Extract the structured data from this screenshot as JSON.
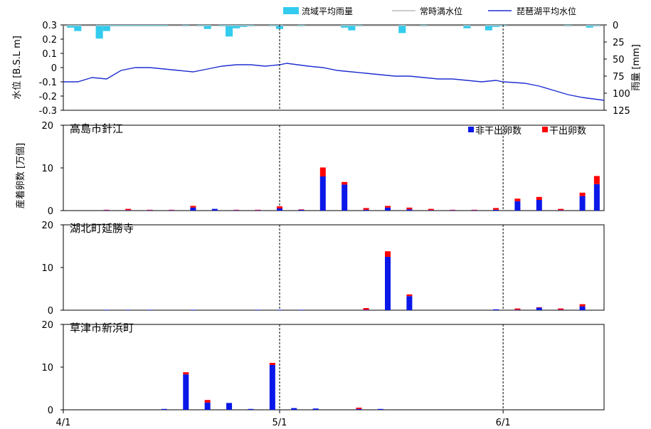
{
  "chart_data": {
    "type": "bar",
    "x_tick_labels": [
      "4/1",
      "5/1",
      "6/1"
    ],
    "x_ticks_day": [
      0,
      30,
      61
    ],
    "x_range_day": [
      0,
      75
    ],
    "legend_top": {
      "rain": "流域平均雨量",
      "normal": "常時満水位",
      "lake": "琵琶湖平均水位"
    },
    "colors": {
      "rain": "#33ccee",
      "normal": "#bbbbbb",
      "lake": "#1f2fd0",
      "not_dried": "#0a18e8",
      "dried": "#ff0000"
    },
    "water": {
      "ylabel": "水位 [B.S.L m]",
      "ylim": [
        -0.3,
        0.3
      ],
      "yticks": [
        "0.3",
        "0.2",
        "0.1",
        "0",
        "-0.1",
        "-0.2",
        "-0.3"
      ],
      "y2label": "雨量 [mm]",
      "y2lim": [
        0,
        125
      ],
      "y2ticks": [
        "0",
        "25",
        "50",
        "75",
        "100",
        "125"
      ],
      "normal_level": 0.3,
      "level_day": [
        0,
        2,
        4,
        6,
        8,
        10,
        12,
        14,
        16,
        18,
        20,
        22,
        24,
        26,
        28,
        30,
        31,
        34,
        36,
        38,
        40,
        42,
        44,
        46,
        48,
        50,
        52,
        54,
        56,
        58,
        60,
        61,
        64,
        66,
        68,
        70,
        72,
        75
      ],
      "level": [
        -0.1,
        -0.1,
        -0.07,
        -0.08,
        -0.02,
        0.0,
        0.0,
        -0.01,
        -0.02,
        -0.03,
        -0.01,
        0.01,
        0.02,
        0.02,
        0.01,
        0.02,
        0.03,
        0.01,
        0.0,
        -0.02,
        -0.03,
        -0.04,
        -0.05,
        -0.06,
        -0.06,
        -0.07,
        -0.08,
        -0.08,
        -0.09,
        -0.1,
        -0.09,
        -0.1,
        -0.11,
        -0.13,
        -0.16,
        -0.19,
        -0.21,
        -0.23
      ],
      "rain_day": [
        1,
        2,
        5,
        6,
        7,
        8,
        9,
        10,
        11,
        12,
        13,
        14,
        17,
        19,
        20,
        22,
        23,
        24,
        25,
        26,
        29,
        30,
        33,
        39,
        40,
        41,
        47,
        50,
        56,
        59,
        60,
        61,
        70,
        73,
        74
      ],
      "rain_mm": [
        4,
        9,
        20,
        9,
        2,
        2,
        2,
        2,
        2,
        2,
        2,
        2,
        2,
        2,
        6,
        2,
        17,
        5,
        3,
        2,
        2,
        6,
        2,
        4,
        8,
        2,
        12,
        2,
        5,
        8,
        3,
        2,
        2,
        4,
        2
      ]
    },
    "legend_eggs": {
      "not_dried": "非干出卵数",
      "dried": "干出卵数"
    },
    "panels_ylabel": "産着卵数 [万個]",
    "panels": [
      {
        "title": "高島市針江",
        "ylim": [
          0,
          20
        ],
        "yticks": [
          "20",
          "10",
          "0"
        ],
        "day": [
          6,
          9,
          12,
          15,
          18,
          21,
          24,
          27,
          30,
          33,
          36,
          39,
          42,
          45,
          48,
          51,
          54,
          57,
          60,
          63,
          66,
          69,
          72,
          74
        ],
        "not_dried": [
          0.1,
          0.1,
          0.1,
          0.1,
          0.7,
          0.4,
          0.1,
          0.1,
          0.5,
          0.2,
          8.0,
          6.1,
          0.2,
          0.7,
          0.3,
          0.1,
          0.1,
          0.1,
          0.2,
          2.2,
          2.5,
          0.1,
          3.4,
          6.2
        ],
        "dried": [
          0.1,
          0.3,
          0.1,
          0.1,
          0.4,
          0.0,
          0.1,
          0.1,
          0.5,
          0.1,
          2.1,
          0.6,
          0.4,
          0.4,
          0.4,
          0.3,
          0.1,
          0.1,
          0.4,
          0.6,
          0.7,
          0.3,
          0.8,
          1.9
        ]
      },
      {
        "title": "湖北町延勝寺",
        "ylim": [
          0,
          20
        ],
        "yticks": [
          "20",
          "10",
          "0"
        ],
        "day": [
          6,
          9,
          12,
          18,
          27,
          30,
          33,
          42,
          45,
          48,
          60,
          63,
          66,
          69,
          72
        ],
        "not_dried": [
          0.1,
          0.1,
          0.1,
          0.1,
          0.1,
          0.1,
          0.1,
          0.1,
          12.5,
          3.3,
          0.2,
          0.1,
          0.6,
          0.1,
          0.9
        ],
        "dried": [
          0.0,
          0.0,
          0.0,
          0.0,
          0.0,
          0.0,
          0.0,
          0.4,
          1.3,
          0.4,
          0.0,
          0.3,
          0.1,
          0.3,
          0.5
        ]
      },
      {
        "title": "草津市新浜町",
        "ylim": [
          0,
          20
        ],
        "yticks": [
          "20",
          "10",
          "0"
        ],
        "day": [
          14,
          17,
          20,
          23,
          26,
          29,
          32,
          35,
          41,
          44
        ],
        "not_dried": [
          0.2,
          8.3,
          1.7,
          1.6,
          0.2,
          10.5,
          0.4,
          0.3,
          0.2,
          0.2
        ],
        "dried": [
          0.0,
          0.5,
          0.6,
          0.0,
          0.0,
          0.5,
          0.0,
          0.0,
          0.3,
          0.0
        ]
      }
    ]
  }
}
